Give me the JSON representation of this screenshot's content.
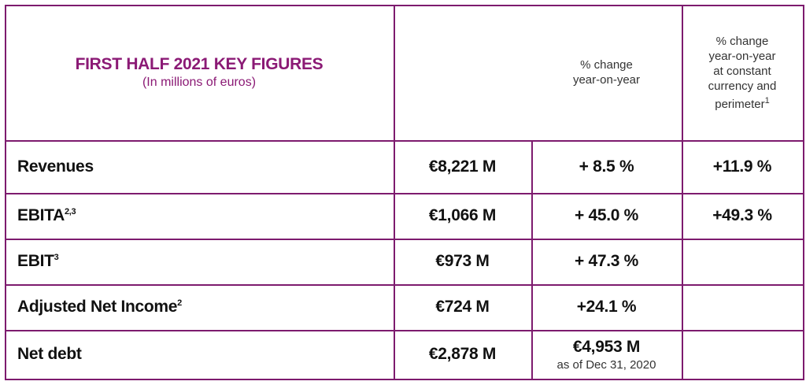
{
  "header": {
    "title": "FIRST HALF 2021 KEY FIGURES",
    "subtitle": "(In millions of euros)",
    "change_lines": [
      "% change",
      "year-on-year"
    ],
    "change_cc_lines": [
      "% change",
      "year-on-year",
      "at constant",
      "currency and",
      "perimeter"
    ],
    "change_cc_sup": "1"
  },
  "rows": [
    {
      "label": "Revenues",
      "value": "€8,221 M",
      "change": "+ 8.5 %",
      "change_cc": "+11.9 %"
    },
    {
      "label": "EBITA",
      "sup": "2,3",
      "value": "€1,066 M",
      "change": "+ 45.0 %",
      "change_cc": "+49.3 %"
    },
    {
      "label": "EBIT",
      "sup": "3",
      "value": "€973 M",
      "change": "+ 47.3 %"
    },
    {
      "label": "Adjusted Net Income",
      "sup": "2",
      "value": "€724 M",
      "change": "+24.1 %"
    },
    {
      "label": "Net debt",
      "value": "€2,878 M",
      "change": "€4,953 M",
      "change_note": "as of Dec 31, 2020"
    }
  ]
}
